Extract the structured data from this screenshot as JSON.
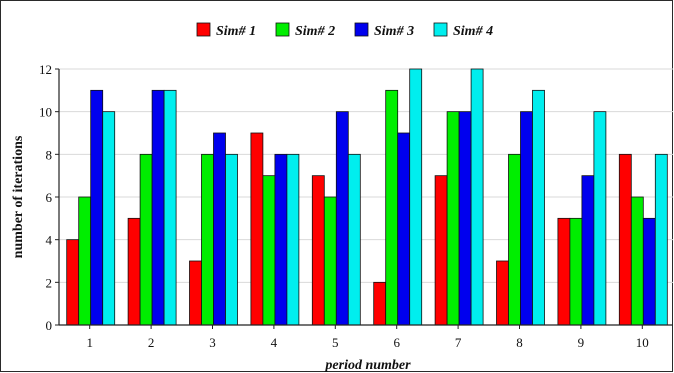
{
  "chart_data": {
    "type": "bar",
    "title": "",
    "xlabel": "period number",
    "ylabel": "number of iterations",
    "categories": [
      "1",
      "2",
      "3",
      "4",
      "5",
      "6",
      "7",
      "8",
      "9",
      "10"
    ],
    "ylim": [
      0,
      12
    ],
    "yticks": [
      "0",
      "2",
      "4",
      "6",
      "8",
      "10",
      "12"
    ],
    "grid": "horizontal",
    "legend_position": "top",
    "series": [
      {
        "name": "Sim# 1",
        "color": "#ff0000",
        "values": [
          4,
          5,
          3,
          9,
          7,
          2,
          7,
          3,
          5,
          8
        ]
      },
      {
        "name": "Sim# 2",
        "color": "#00ee00",
        "values": [
          6,
          8,
          8,
          7,
          6,
          11,
          10,
          8,
          5,
          6
        ]
      },
      {
        "name": "Sim# 3",
        "color": "#0000ee",
        "values": [
          11,
          11,
          9,
          8,
          10,
          9,
          10,
          10,
          7,
          5
        ]
      },
      {
        "name": "Sim# 4",
        "color": "#00eeee",
        "values": [
          10,
          11,
          8,
          8,
          8,
          12,
          12,
          11,
          10,
          8
        ]
      }
    ]
  }
}
